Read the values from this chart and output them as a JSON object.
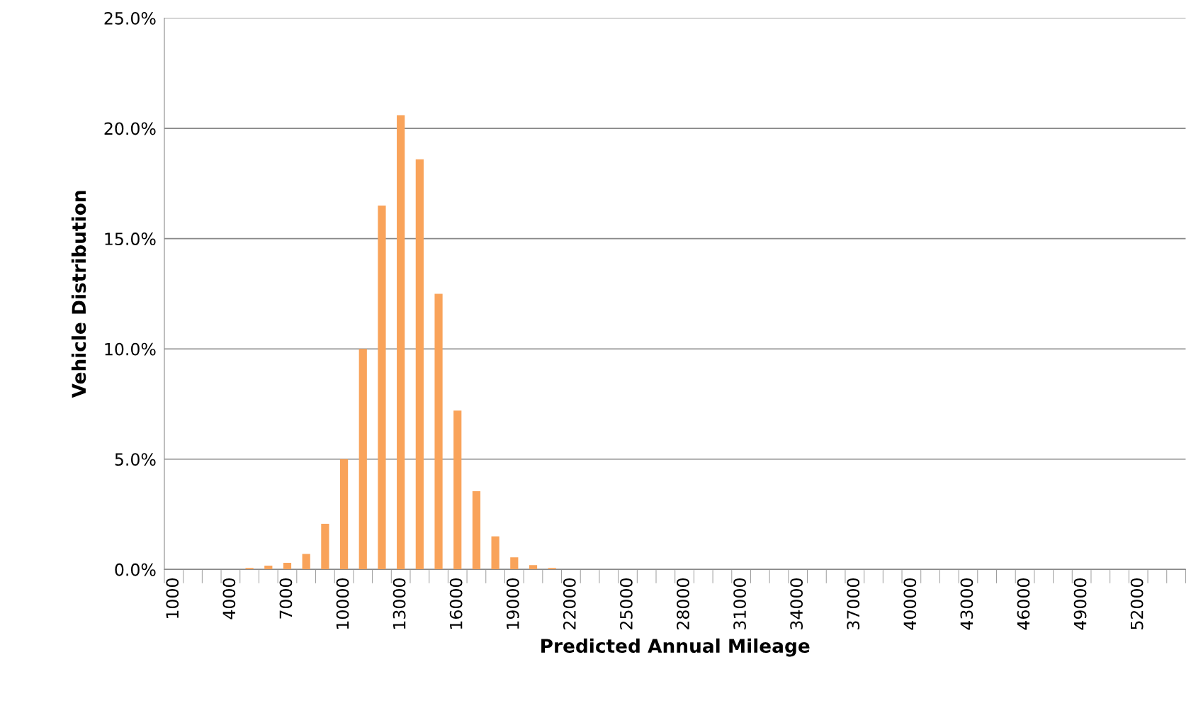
{
  "chart_data": {
    "type": "bar",
    "xlabel": "Predicted Annual Mileage",
    "ylabel": "Vehicle Distribution",
    "categories": [
      "1000",
      null,
      null,
      "4000",
      null,
      null,
      "7000",
      null,
      null,
      "10000",
      null,
      null,
      "13000",
      null,
      null,
      "16000",
      null,
      null,
      "19000",
      null,
      null,
      "22000",
      null,
      null,
      "25000",
      null,
      null,
      "28000",
      null,
      null,
      "31000",
      null,
      null,
      "34000",
      null,
      null,
      "37000",
      null,
      null,
      "40000",
      null,
      null,
      "43000",
      null,
      null,
      "46000",
      null,
      null,
      "49000",
      null,
      null,
      "52000",
      null,
      null
    ],
    "values": [
      0,
      0,
      0,
      0,
      0.07,
      0.17,
      0.3,
      0.7,
      2.07,
      5.0,
      10.0,
      16.5,
      20.6,
      18.6,
      12.5,
      7.2,
      3.55,
      1.5,
      0.55,
      0.2,
      0.07,
      0,
      0,
      0,
      0,
      0,
      0,
      0,
      0,
      0,
      0,
      0,
      0,
      0,
      0,
      0,
      0,
      0,
      0,
      0,
      0,
      0,
      0,
      0,
      0,
      0,
      0,
      0,
      0,
      0,
      0,
      0,
      0,
      0
    ],
    "color": "#f9a35a",
    "ylim": [
      0,
      25
    ],
    "yticks": [
      {
        "value": 0,
        "label": "0.0%"
      },
      {
        "value": 5,
        "label": "5.0%"
      },
      {
        "value": 10,
        "label": "10.0%"
      },
      {
        "value": 15,
        "label": "15.0%"
      },
      {
        "value": 20,
        "label": "20.0%"
      },
      {
        "value": 25,
        "label": "25.0%"
      }
    ],
    "grid": "y",
    "legend": false
  }
}
